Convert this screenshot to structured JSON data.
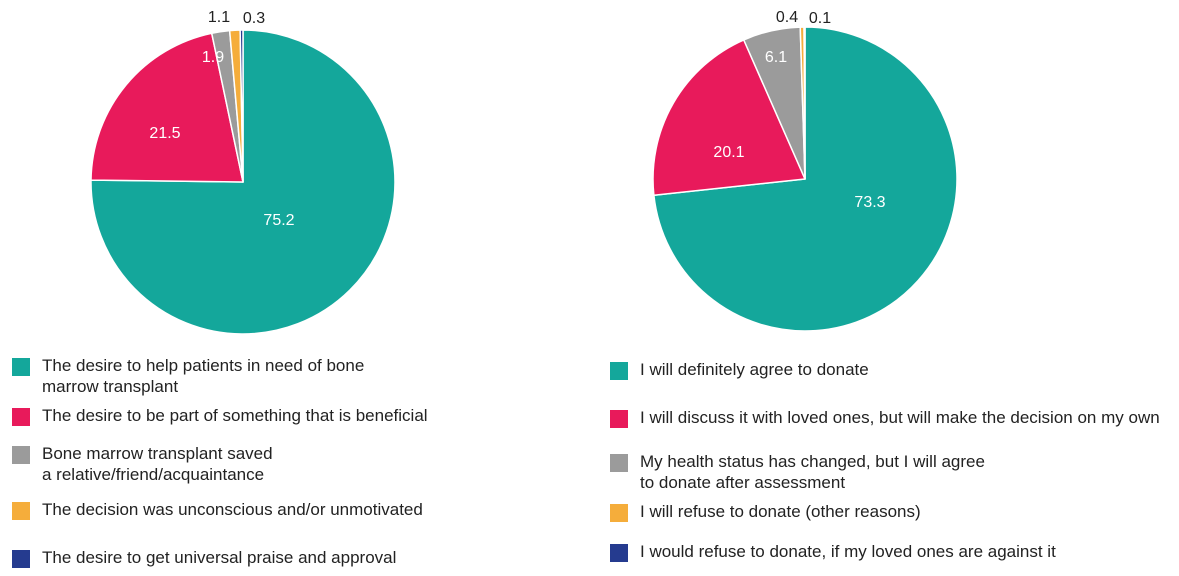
{
  "chart_data": [
    {
      "type": "pie",
      "title": "",
      "slices": [
        {
          "label": "The desire to help patients in need of bone\nmarrow transplant",
          "value": 75.2,
          "value_label": "75.2",
          "color": "#14a79b"
        },
        {
          "label": "The desire to be part of something that is beneficial",
          "value": 21.5,
          "value_label": "21.5",
          "color": "#e81a5b"
        },
        {
          "label": "Bone marrow transplant saved\na relative/friend/acquaintance",
          "value": 1.9,
          "value_label": "1.9",
          "color": "#9b9b9b"
        },
        {
          "label": "The decision was unconscious and/or unmotivated",
          "value": 1.1,
          "value_label": "1.1",
          "color": "#f5ad3b"
        },
        {
          "label": "The desire to get universal praise and approval",
          "value": 0.3,
          "value_label": "0.3",
          "color": "#253b8f"
        }
      ],
      "legend_position": "bottom"
    },
    {
      "type": "pie",
      "title": "",
      "slices": [
        {
          "label": "I will definitely agree to donate",
          "value": 73.3,
          "value_label": "73.3",
          "color": "#14a79b"
        },
        {
          "label": "I will discuss it with loved ones, but will make the decision on my own",
          "value": 20.1,
          "value_label": "20.1",
          "color": "#e81a5b"
        },
        {
          "label": "My health status has changed, but I will agree\nto donate after assessment",
          "value": 6.1,
          "value_label": "6.1",
          "color": "#9b9b9b"
        },
        {
          "label": "I will refuse to donate (other reasons)",
          "value": 0.4,
          "value_label": "0.4",
          "color": "#f5ad3b"
        },
        {
          "label": "I would refuse to donate, if my loved ones are against it",
          "value": 0.1,
          "value_label": "0.1",
          "color": "#253b8f"
        }
      ],
      "legend_position": "bottom"
    }
  ]
}
